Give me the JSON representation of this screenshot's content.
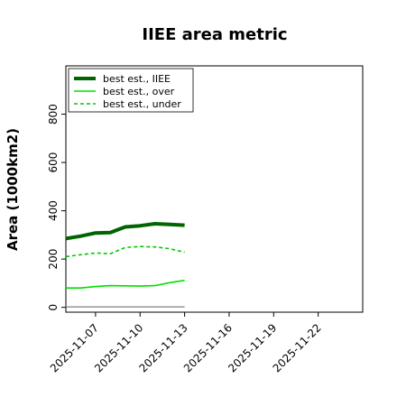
{
  "chart_data": {
    "type": "line",
    "title": "IIEE area metric",
    "xlabel": "",
    "ylabel": "Area (1000km2)",
    "ylim": [
      -20,
      1000
    ],
    "xlim": [
      "2025-11-05",
      "2025-11-25"
    ],
    "grid": false,
    "legend_position": "top-left",
    "x_ticks": [
      "2025-11-07",
      "2025-11-10",
      "2025-11-13",
      "2025-11-16",
      "2025-11-19",
      "2025-11-22"
    ],
    "y_ticks": [
      0,
      200,
      400,
      600,
      800
    ],
    "x": [
      "2025-11-05",
      "2025-11-06",
      "2025-11-07",
      "2025-11-08",
      "2025-11-09",
      "2025-11-10",
      "2025-11-11",
      "2025-11-12",
      "2025-11-13"
    ],
    "series": [
      {
        "name": "best est., IIEE",
        "color": "#006400",
        "style": "solid",
        "width": 4,
        "values": [
          285,
          295,
          308,
          310,
          333,
          338,
          346,
          343,
          340
        ]
      },
      {
        "name": "best est., over",
        "color": "#00e000",
        "style": "solid",
        "width": 1.6,
        "values": [
          80,
          80,
          86,
          90,
          89,
          88,
          90,
          102,
          112
        ]
      },
      {
        "name": "best est., under",
        "color": "#00c800",
        "style": "dashed",
        "width": 1.6,
        "values": [
          210,
          218,
          225,
          222,
          248,
          252,
          250,
          243,
          228
        ]
      },
      {
        "name": "",
        "color": "#808080",
        "style": "solid",
        "width": 1.2,
        "values": [
          2,
          2,
          2,
          2,
          2,
          2,
          2,
          2,
          2
        ]
      }
    ]
  }
}
